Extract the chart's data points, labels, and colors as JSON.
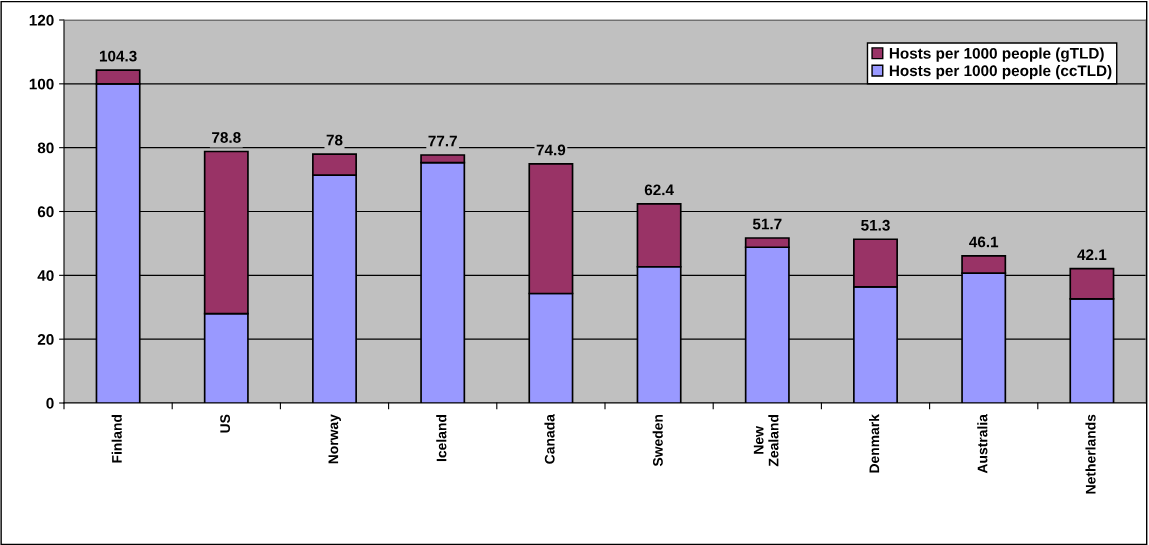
{
  "chart_data": {
    "type": "bar",
    "stacked": true,
    "categories": [
      "Finland",
      "US",
      "Norway",
      "Iceland",
      "Canada",
      "Sweden",
      "New\nZealand",
      "Denmark",
      "Australia",
      "Netherlands"
    ],
    "series": [
      {
        "name": "Hosts per 1000 people (ccTLD)",
        "color": "#9999ff",
        "values": [
          100,
          28,
          71.4,
          75.3,
          34.3,
          42.7,
          48.8,
          36.4,
          40.7,
          32.6
        ]
      },
      {
        "name": "Hosts per 1000 people (gTLD)",
        "color": "#993366",
        "values": [
          4.3,
          50.8,
          6.6,
          2.4,
          40.6,
          19.7,
          2.9,
          14.9,
          5.4,
          9.5
        ]
      }
    ],
    "totals": [
      "104.3",
      "78.8",
      "78",
      "77.7",
      "74.9",
      "62.4",
      "51.7",
      "51.3",
      "46.1",
      "42.1"
    ],
    "ylim": [
      0,
      120
    ],
    "yticks": [
      0,
      20,
      40,
      60,
      80,
      100,
      120
    ],
    "grid": "y",
    "legend": "top right"
  }
}
